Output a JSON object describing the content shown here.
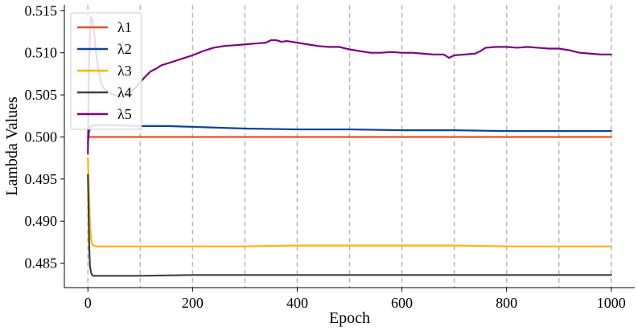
{
  "chart_data": {
    "type": "line",
    "title": "",
    "xlabel": "Epoch",
    "ylabel": "Lambda Values",
    "xlim": [
      -45,
      1045
    ],
    "ylim": [
      0.4821,
      0.5157
    ],
    "x_ticks": [
      0,
      200,
      400,
      600,
      800,
      1000
    ],
    "x_tick_labels": [
      "0",
      "200",
      "400",
      "600",
      "800",
      "1000"
    ],
    "y_ticks": [
      0.485,
      0.49,
      0.495,
      0.5,
      0.505,
      0.51,
      0.515
    ],
    "y_tick_labels": [
      "0.485",
      "0.490",
      "0.495",
      "0.500",
      "0.505",
      "0.510",
      "0.515"
    ],
    "vertical_gridlines_x": [
      0,
      100,
      200,
      300,
      400,
      500,
      600,
      700,
      800,
      900,
      1000
    ],
    "grid": "vertical dashed lines every 100 epochs",
    "legend": {
      "placement": "top-left"
    },
    "series": [
      {
        "name": "λ1",
        "color": "#e8502a",
        "x": [
          0,
          1000
        ],
        "values": [
          0.5,
          0.5
        ]
      },
      {
        "name": "λ2",
        "color": "#0d4595",
        "x": [
          0,
          2,
          5,
          10,
          20,
          50,
          100,
          150,
          200,
          300,
          400,
          500,
          600,
          700,
          800,
          900,
          1000
        ],
        "values": [
          0.4993,
          0.5006,
          0.5012,
          0.5014,
          0.5014,
          0.5014,
          0.5013,
          0.5013,
          0.5012,
          0.501,
          0.5009,
          0.5009,
          0.5008,
          0.5008,
          0.5007,
          0.5007,
          0.5007
        ]
      },
      {
        "name": "λ3",
        "color": "#ffb400",
        "x": [
          0,
          2,
          4,
          6,
          8,
          10,
          15,
          20,
          50,
          100,
          200,
          300,
          400,
          500,
          600,
          700,
          800,
          900,
          1000
        ],
        "values": [
          0.4975,
          0.4935,
          0.4895,
          0.4878,
          0.4873,
          0.4871,
          0.487,
          0.487,
          0.487,
          0.487,
          0.487,
          0.487,
          0.4871,
          0.4871,
          0.4871,
          0.4871,
          0.487,
          0.487,
          0.487
        ]
      },
      {
        "name": "λ4",
        "color": "#404040",
        "x": [
          0,
          1,
          2,
          3,
          4,
          6,
          8,
          10,
          15,
          20,
          50,
          100,
          200,
          300,
          400,
          500,
          600,
          700,
          800,
          900,
          1000
        ],
        "values": [
          0.4955,
          0.4922,
          0.4885,
          0.486,
          0.4846,
          0.4839,
          0.4836,
          0.4835,
          0.4835,
          0.4835,
          0.4835,
          0.4835,
          0.4836,
          0.4836,
          0.4836,
          0.4836,
          0.4836,
          0.4836,
          0.4836,
          0.4836,
          0.4836
        ]
      },
      {
        "name": "λ5",
        "color": "#800080",
        "x": [
          0,
          2,
          4,
          6,
          8,
          10,
          13,
          16,
          20,
          25,
          30,
          40,
          50,
          60,
          70,
          80,
          90,
          100,
          110,
          120,
          130,
          140,
          150,
          160,
          170,
          180,
          190,
          200,
          220,
          240,
          260,
          280,
          300,
          320,
          340,
          350,
          360,
          370,
          380,
          400,
          420,
          440,
          460,
          480,
          500,
          520,
          540,
          560,
          580,
          600,
          620,
          640,
          660,
          680,
          690,
          700,
          720,
          740,
          750,
          760,
          780,
          800,
          820,
          840,
          860,
          880,
          900,
          920,
          940,
          960,
          980,
          1000
        ],
        "values": [
          0.498,
          0.508,
          0.5125,
          0.5143,
          0.5141,
          0.5135,
          0.5118,
          0.5098,
          0.508,
          0.5065,
          0.5058,
          0.5053,
          0.505,
          0.5048,
          0.505,
          0.5053,
          0.5058,
          0.5065,
          0.5072,
          0.5078,
          0.5081,
          0.5085,
          0.5087,
          0.5089,
          0.5091,
          0.5093,
          0.5095,
          0.5097,
          0.5102,
          0.5106,
          0.5108,
          0.5109,
          0.511,
          0.5111,
          0.5112,
          0.5115,
          0.5115,
          0.5113,
          0.5114,
          0.5112,
          0.511,
          0.5108,
          0.5107,
          0.5107,
          0.5104,
          0.5102,
          0.51,
          0.51,
          0.5101,
          0.51,
          0.51,
          0.5099,
          0.5098,
          0.5098,
          0.5094,
          0.5097,
          0.5098,
          0.5099,
          0.5102,
          0.5106,
          0.5107,
          0.5107,
          0.5106,
          0.5107,
          0.5106,
          0.5105,
          0.5105,
          0.5103,
          0.51,
          0.5099,
          0.5098,
          0.5098
        ]
      }
    ]
  }
}
